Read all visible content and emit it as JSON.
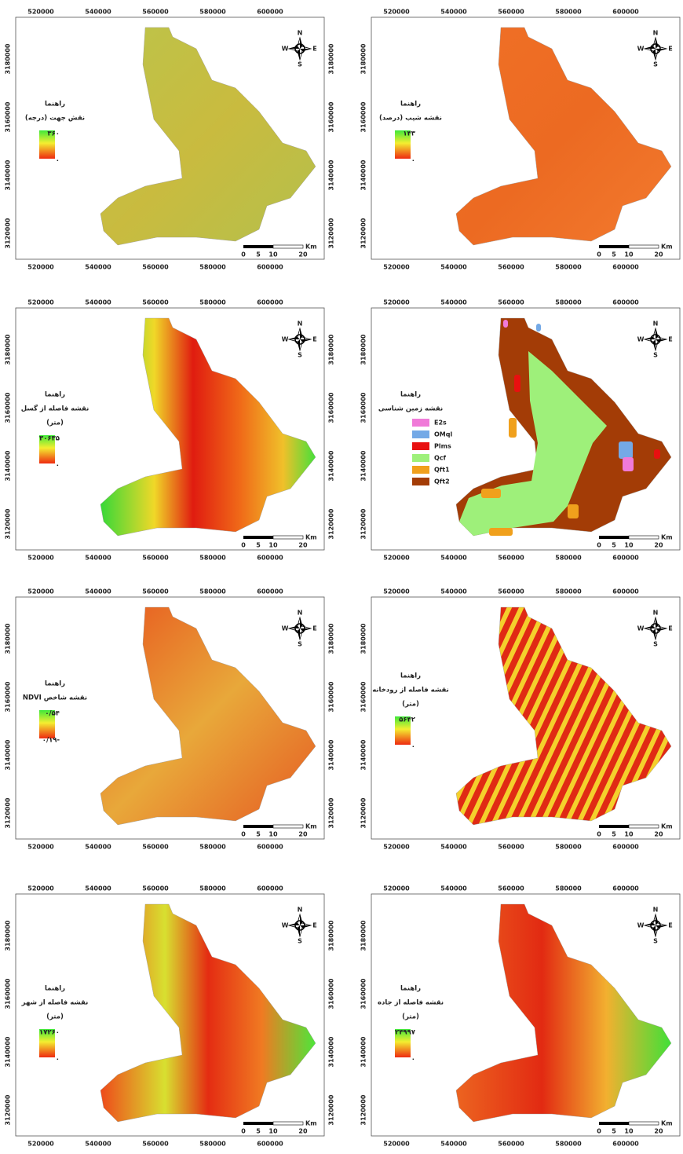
{
  "axes": {
    "x_ticks": [
      "520000",
      "540000",
      "560000",
      "580000",
      "600000"
    ],
    "y_ticks": [
      "3180000",
      "3160000",
      "3140000",
      "3120000"
    ],
    "scale_bar": [
      "0",
      "5",
      "10",
      "20"
    ],
    "scale_unit": "Km",
    "compass": {
      "n": "N",
      "s": "S",
      "e": "E",
      "w": "W"
    }
  },
  "panels": [
    {
      "legend_title": "راهنما",
      "legend_subtitle": "نقش جهت (درجه)",
      "legend_max": "۳۶۰",
      "legend_min": "۰"
    },
    {
      "legend_title": "راهنما",
      "legend_subtitle": "نقشه شیب (درصد)",
      "legend_max": "۱۴۳",
      "legend_min": "۰"
    },
    {
      "legend_title": "راهنما",
      "legend_subtitle": "نقشه فاصله از گسل",
      "legend_unit": "(متر)",
      "legend_max": "۳۰۶۳۵",
      "legend_min": "۰"
    },
    {
      "legend_title": "راهنما",
      "legend_subtitle": "نقشه زمین شناسی",
      "legend_classes": [
        {
          "label": "E2s",
          "color": "#f07ad8"
        },
        {
          "label": "OMql",
          "color": "#74a9e6"
        },
        {
          "label": "Plms",
          "color": "#e81010"
        },
        {
          "label": "Qcf",
          "color": "#9ef07a"
        },
        {
          "label": "Qft1",
          "color": "#f0a01c"
        },
        {
          "label": "Qft2",
          "color": "#a33c06"
        }
      ]
    },
    {
      "legend_title": "راهنما",
      "legend_subtitle": "نقشه شاخص NDVI",
      "legend_max": "۰/۵۴",
      "legend_min": "-۰/۱۹"
    },
    {
      "legend_title": "راهنما",
      "legend_subtitle": "نقشه فاصله از رودخانه",
      "legend_unit": "(متر)",
      "legend_max": "۵۶۴۲",
      "legend_min": "۰"
    },
    {
      "legend_title": "راهنما",
      "legend_subtitle": "نقشه فاصله از شهر",
      "legend_unit": "(متر)",
      "legend_max": "۱۷۲۶۰",
      "legend_min": "۰"
    },
    {
      "legend_title": "راهنما",
      "legend_subtitle": "نقشه فاصله از جاده",
      "legend_unit": "(متر)",
      "legend_max": "۲۴۹۹۷",
      "legend_min": "۰"
    }
  ]
}
